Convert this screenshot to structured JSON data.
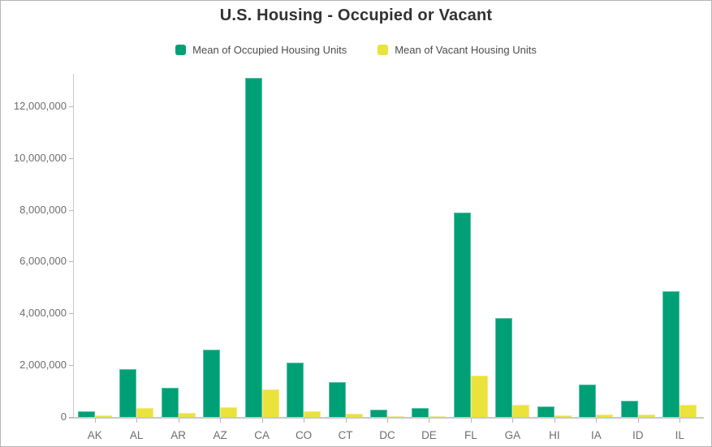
{
  "title": "U.S. Housing - Occupied or Vacant",
  "legend": [
    {
      "label": "Mean of Occupied Housing Units",
      "color": "#00a077"
    },
    {
      "label": "Mean of Vacant Housing Units",
      "color": "#ebe23c"
    }
  ],
  "chart_data": {
    "type": "bar",
    "title": "U.S. Housing - Occupied or Vacant",
    "xlabel": "",
    "ylabel": "",
    "grid": false,
    "legend_position": "top",
    "categories": [
      "AK",
      "AL",
      "AR",
      "AZ",
      "CA",
      "CO",
      "CT",
      "DC",
      "DE",
      "FL",
      "GA",
      "HI",
      "IA",
      "ID",
      "IL"
    ],
    "series": [
      {
        "name": "Mean of Occupied Housing Units",
        "color": "#00a077",
        "values": [
          230000,
          1860000,
          1130000,
          2600000,
          13100000,
          2110000,
          1350000,
          270000,
          340000,
          7900000,
          3810000,
          420000,
          1250000,
          620000,
          4870000
        ]
      },
      {
        "name": "Mean of Vacant Housing Units",
        "color": "#ebe23c",
        "values": [
          50000,
          360000,
          170000,
          370000,
          1070000,
          210000,
          115000,
          30000,
          45000,
          1590000,
          460000,
          60000,
          110000,
          80000,
          460000
        ]
      }
    ],
    "ylim": [
      0,
      13250000
    ],
    "yticks": [
      0,
      2000000,
      4000000,
      6000000,
      8000000,
      10000000,
      12000000
    ],
    "ytick_labels": [
      "0",
      "2,000,000",
      "4,000,000",
      "6,000,000",
      "8,000,000",
      "10,000,000",
      "12,000,000"
    ]
  }
}
